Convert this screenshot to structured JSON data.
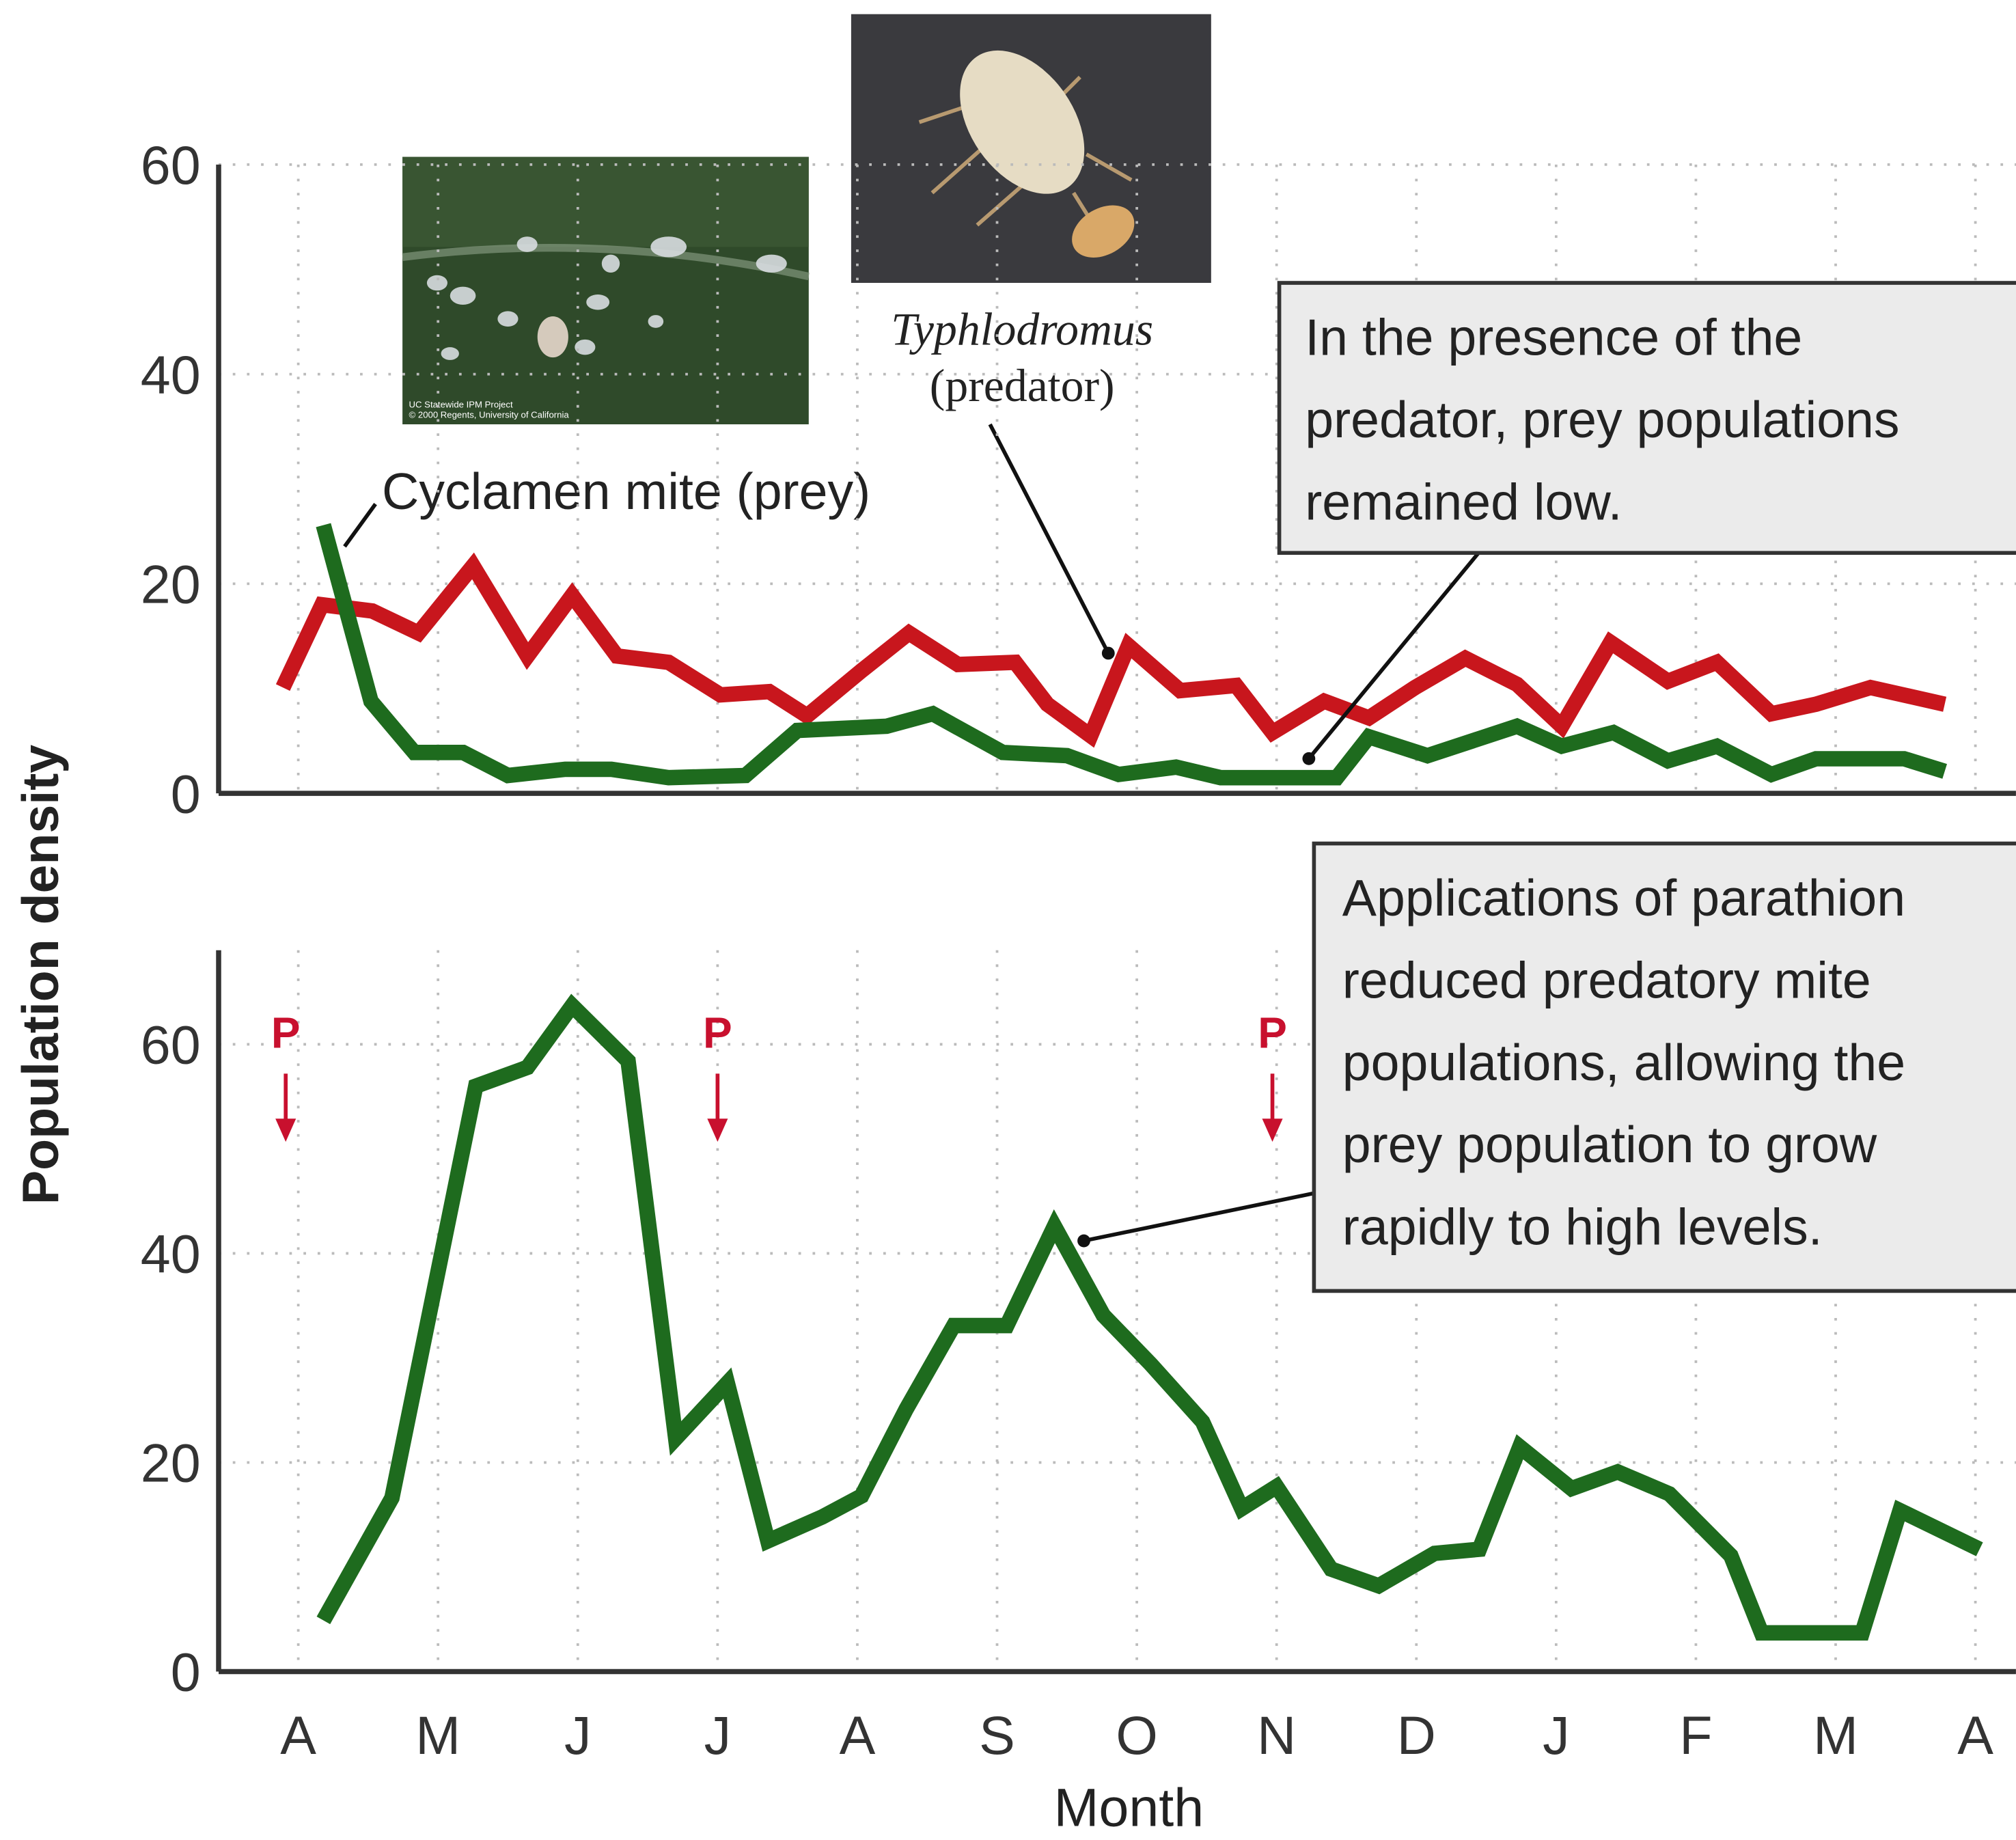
{
  "chart_data": [
    {
      "type": "line",
      "ylabel": "Population density",
      "xlim": [
        -0.57,
        12.29
      ],
      "ylim": [
        0,
        60
      ],
      "yticks": [
        0,
        20,
        40,
        60
      ],
      "grid": true,
      "series": [
        {
          "color": "#c8161d",
          "x": [
            -0.11,
            0.17,
            0.53,
            0.86,
            1.25,
            1.64,
            1.96,
            2.28,
            2.65,
            3.02,
            3.37,
            3.64,
            4.03,
            4.37,
            4.72,
            5.13,
            5.36,
            5.67,
            5.94,
            6.31,
            6.71,
            6.97,
            7.34,
            7.66,
            7.99,
            8.35,
            8.72,
            9.04,
            9.39,
            9.8,
            10.15,
            10.54,
            10.86,
            11.25,
            11.78
          ],
          "values": [
            10.1,
            18.0,
            17.4,
            15.3,
            21.7,
            13.1,
            18.9,
            13.1,
            12.5,
            9.4,
            9.7,
            7.4,
            11.7,
            15.3,
            12.3,
            12.5,
            8.5,
            5.5,
            14.1,
            9.8,
            10.3,
            5.8,
            8.8,
            7.2,
            10.1,
            12.9,
            10.4,
            6.4,
            14.4,
            10.7,
            12.5,
            7.6,
            8.5,
            10.1,
            8.5
          ]
        },
        {
          "color": "#1e6b1e",
          "x": [
            0.18,
            0.52,
            0.83,
            1.18,
            1.5,
            1.91,
            2.24,
            2.65,
            3.2,
            3.57,
            4.21,
            4.54,
            5.04,
            5.5,
            5.87,
            6.28,
            6.6,
            7.43,
            7.66,
            8.08,
            8.72,
            9.04,
            9.41,
            9.8,
            10.15,
            10.54,
            10.86,
            11.49,
            11.78
          ],
          "values": [
            25.6,
            8.8,
            3.9,
            3.9,
            1.7,
            2.3,
            2.3,
            1.5,
            1.7,
            6.0,
            6.4,
            7.6,
            3.9,
            3.6,
            1.8,
            2.5,
            1.5,
            1.5,
            5.4,
            3.6,
            6.4,
            4.5,
            5.8,
            3.1,
            4.5,
            1.8,
            3.3,
            3.3,
            2.1
          ]
        }
      ],
      "prey_label": "Cyclamen mite (prey)",
      "predator_name": "Typhlodromus",
      "predator_role": "(predator)",
      "callout": [
        "In the presence of the",
        "predator, prey populations",
        "remained low."
      ],
      "photo_credit": [
        "UC Statewide IPM Project",
        "© 2000 Regents, University of California"
      ]
    },
    {
      "type": "line",
      "xlabel": "Month",
      "xlim": [
        -0.57,
        12.29
      ],
      "ylim": [
        0,
        69
      ],
      "yticks": [
        0,
        20,
        40,
        60
      ],
      "grid": true,
      "xticks": [
        {
          "value": 0,
          "label": "A"
        },
        {
          "value": 1,
          "label": "M"
        },
        {
          "value": 2,
          "label": "J"
        },
        {
          "value": 3,
          "label": "J"
        },
        {
          "value": 4,
          "label": "A"
        },
        {
          "value": 5,
          "label": "S"
        },
        {
          "value": 6,
          "label": "O"
        },
        {
          "value": 7,
          "label": "N"
        },
        {
          "value": 8,
          "label": "D"
        },
        {
          "value": 9,
          "label": "J"
        },
        {
          "value": 10,
          "label": "F"
        },
        {
          "value": 11,
          "label": "M"
        },
        {
          "value": 12,
          "label": "A"
        }
      ],
      "series": [
        {
          "color": "#1e6b1e",
          "x": [
            0.18,
            0.67,
            1.27,
            1.64,
            1.96,
            2.36,
            2.7,
            3.07,
            3.36,
            3.75,
            4.03,
            4.35,
            4.69,
            5.07,
            5.41,
            5.76,
            6.1,
            6.47,
            6.75,
            7.0,
            7.39,
            7.73,
            8.13,
            8.45,
            8.74,
            9.11,
            9.44,
            9.81,
            10.25,
            10.47,
            11.19,
            11.46,
            12.03
          ],
          "values": [
            4.9,
            16.6,
            56.0,
            57.8,
            63.7,
            58.4,
            22.3,
            27.6,
            12.5,
            14.8,
            16.8,
            25.1,
            33.1,
            33.1,
            42.6,
            34.1,
            29.4,
            23.9,
            15.6,
            17.7,
            9.8,
            8.2,
            11.3,
            11.7,
            21.5,
            17.5,
            19.1,
            17.0,
            11.1,
            3.7,
            3.7,
            15.4,
            11.7
          ]
        }
      ],
      "markers": {
        "label": "P",
        "color": "#c8102e",
        "x": [
          -0.09,
          3.0,
          6.97
        ]
      },
      "callout": [
        "Applications of parathion",
        "reduced predatory mite",
        "populations, allowing the",
        "prey population to grow",
        "rapidly to high levels."
      ]
    }
  ]
}
